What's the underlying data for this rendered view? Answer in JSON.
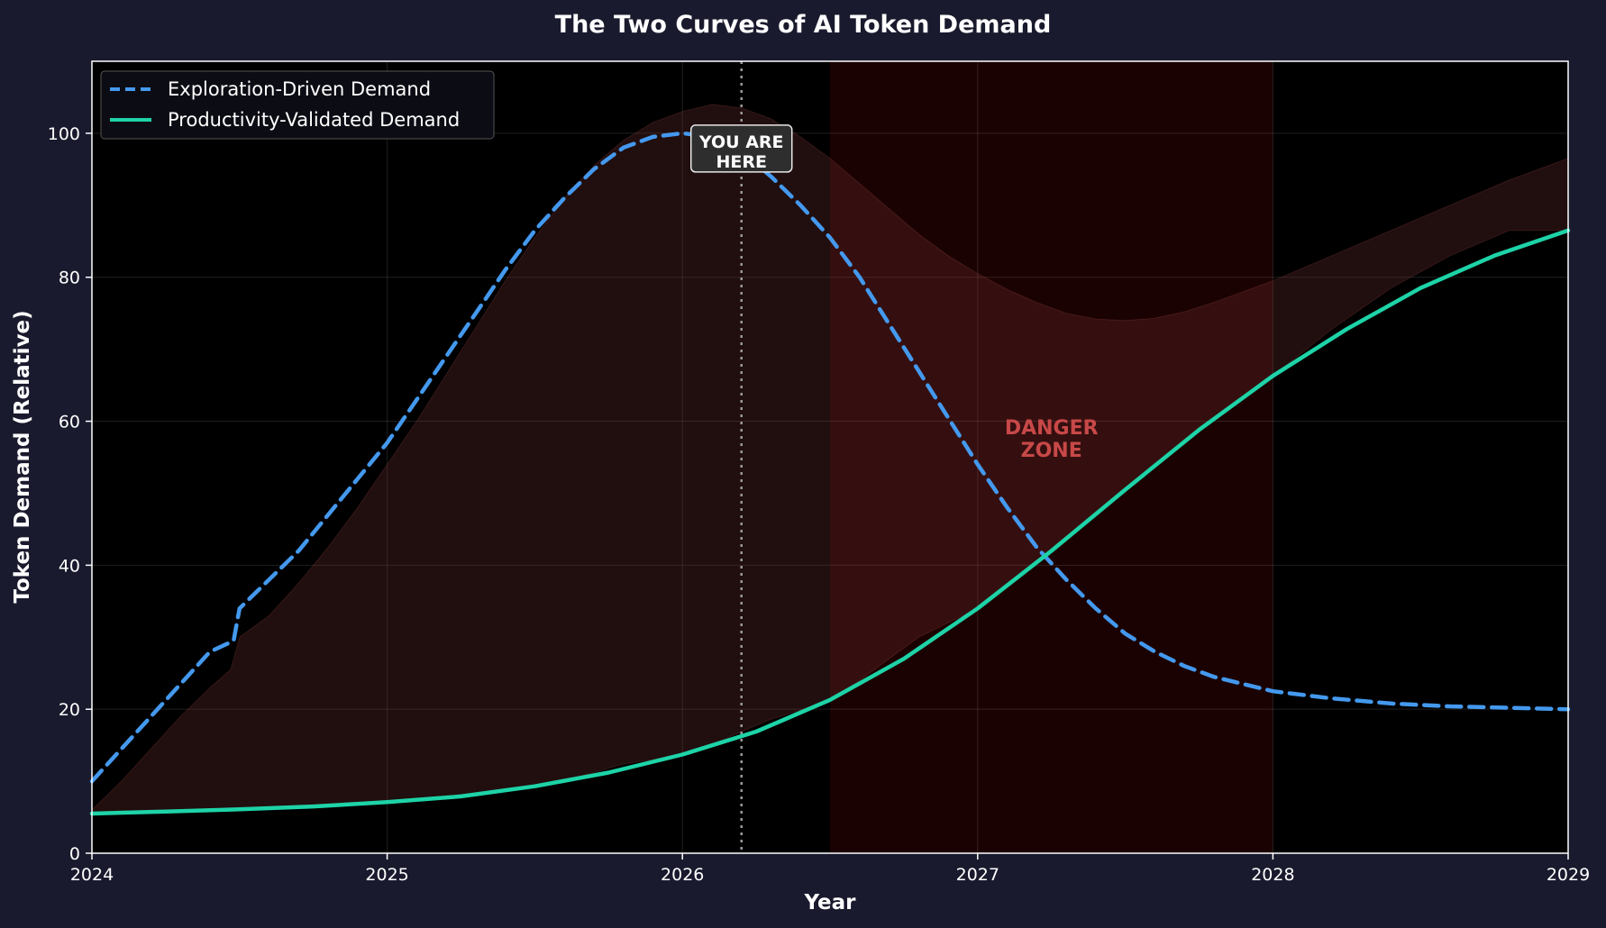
{
  "chart_data": {
    "type": "line",
    "title": "The Two Curves of AI Token Demand",
    "xlabel": "Year",
    "ylabel": "Token Demand (Relative)",
    "xlim": [
      2024,
      2029
    ],
    "ylim": [
      0,
      110
    ],
    "xticks": [
      "2024",
      "2025",
      "2026",
      "2027",
      "2028",
      "2029"
    ],
    "yticks": [
      "0",
      "20",
      "40",
      "60",
      "80",
      "100"
    ],
    "grid": true,
    "legend_position": "top-left",
    "series": [
      {
        "name": "Exploration-Driven Demand",
        "style": "dashed",
        "color": "#4499ee",
        "x": [
          2024.0,
          2024.1,
          2024.2,
          2024.3,
          2024.4,
          2024.48,
          2024.5,
          2024.6,
          2024.7,
          2024.8,
          2024.9,
          2025.0,
          2025.1,
          2025.2,
          2025.3,
          2025.4,
          2025.5,
          2025.6,
          2025.7,
          2025.8,
          2025.9,
          2026.0,
          2026.1,
          2026.2,
          2026.3,
          2026.4,
          2026.5,
          2026.6,
          2026.7,
          2026.8,
          2026.9,
          2027.0,
          2027.1,
          2027.2,
          2027.3,
          2027.4,
          2027.5,
          2027.6,
          2027.7,
          2027.8,
          2027.9,
          2028.0,
          2028.2,
          2028.4,
          2028.6,
          2028.8,
          2029.0
        ],
        "y": [
          10,
          14.5,
          19,
          23.5,
          28,
          29.5,
          34,
          38,
          42,
          47,
          52,
          57,
          63,
          69,
          75,
          81,
          86.5,
          91,
          95,
          98,
          99.5,
          100,
          99.5,
          97.5,
          94,
          90,
          85.5,
          80,
          73.5,
          67,
          60.5,
          54,
          48,
          42.5,
          38,
          34,
          30.5,
          28,
          26,
          24.5,
          23.5,
          22.5,
          21.5,
          20.8,
          20.4,
          20.2,
          20
        ]
      },
      {
        "name": "Productivity-Validated Demand",
        "style": "solid",
        "color": "#1dd3a7",
        "x": [
          2024.0,
          2024.25,
          2024.5,
          2024.75,
          2025.0,
          2025.25,
          2025.5,
          2025.75,
          2026.0,
          2026.25,
          2026.5,
          2026.75,
          2027.0,
          2027.25,
          2027.5,
          2027.75,
          2028.0,
          2028.25,
          2028.5,
          2028.75,
          2029.0
        ],
        "y": [
          5.5,
          5.8,
          6.1,
          6.5,
          7.1,
          7.9,
          9.3,
          11.2,
          13.7,
          16.9,
          21.3,
          27,
          34,
          42,
          50.5,
          58.8,
          66.3,
          72.8,
          78.5,
          83,
          86.5
        ]
      }
    ],
    "bands": [
      {
        "x": [
          2024.0,
          2024.1,
          2024.2,
          2024.3,
          2024.4,
          2024.47,
          2024.5,
          2024.6,
          2024.7,
          2024.8,
          2024.9,
          2025.0,
          2025.1,
          2025.2,
          2025.3,
          2025.4,
          2025.5,
          2025.6,
          2025.7,
          2025.8,
          2025.9,
          2026.0,
          2026.1,
          2026.2,
          2026.3,
          2026.4,
          2026.5,
          2026.6,
          2026.7,
          2026.8,
          2026.9,
          2027.0,
          2027.1,
          2027.2,
          2027.3,
          2027.4,
          2027.5,
          2027.6,
          2027.7,
          2027.8,
          2027.9,
          2028.0,
          2028.2,
          2028.4,
          2028.6,
          2028.8,
          2029.0
        ],
        "upper": [
          6,
          10,
          14.5,
          19,
          23,
          25.5,
          30,
          33,
          37.5,
          42.5,
          48,
          54,
          60,
          66.5,
          73,
          79.5,
          85.5,
          91,
          95.5,
          99,
          101.5,
          103,
          104,
          103.5,
          102,
          99.5,
          96.5,
          93,
          89.5,
          86,
          83,
          80.5,
          78.3,
          76.5,
          75,
          74.2,
          74,
          74.3,
          75.2,
          76.5,
          78,
          79.5,
          83,
          86.5,
          90,
          93.5,
          96.5
        ],
        "lower": [
          5.5,
          5.6,
          5.7,
          5.8,
          5.9,
          6.0,
          6.1,
          6.2,
          6.4,
          6.6,
          6.8,
          7.1,
          7.4,
          7.8,
          8.3,
          8.9,
          9.3,
          10.2,
          11.2,
          12.4,
          13.0,
          13.7,
          15.1,
          16.9,
          18.6,
          19.9,
          21.3,
          24.0,
          27.0,
          30.0,
          32.0,
          34.0,
          37.2,
          40.4,
          43.7,
          47.1,
          50.5,
          53.9,
          57.2,
          60.3,
          63.3,
          66.3,
          72.8,
          78.5,
          83.0,
          86.5,
          86.5
        ]
      }
    ],
    "regions": [
      {
        "name": "danger-zone",
        "x_start": 2026.5,
        "x_end": 2028.0
      }
    ],
    "vline": {
      "x": 2026.2
    },
    "annotations": [
      {
        "name": "you-are-here",
        "lines": [
          "YOU ARE",
          "HERE"
        ],
        "x": 2026.2,
        "y": 97.5
      },
      {
        "name": "danger-zone",
        "lines": [
          "DANGER",
          "ZONE"
        ],
        "x": 2027.25,
        "y": 57.5
      }
    ]
  }
}
